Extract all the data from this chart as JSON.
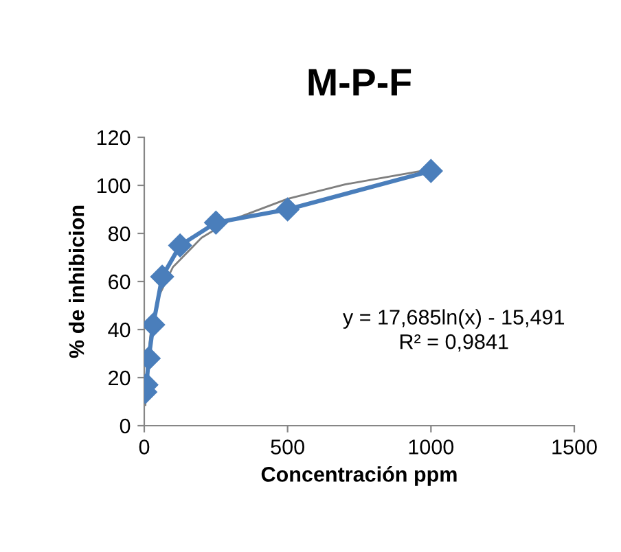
{
  "chart_data": {
    "type": "line",
    "title": "M-P-F",
    "xlabel": "Concentración ppm",
    "ylabel": "% de inhibicion",
    "xlim": [
      0,
      1500
    ],
    "xticks": [
      0,
      500,
      1000,
      1500
    ],
    "ylim": [
      0,
      120
    ],
    "yticks": [
      0,
      20,
      40,
      60,
      80,
      100,
      120
    ],
    "grid": false,
    "legend": false,
    "series": [
      {
        "color": "#4a7ebb",
        "marker": "diamond",
        "x": [
          3.9,
          7.8,
          15.6,
          31.25,
          62.5,
          125,
          250,
          500,
          1000
        ],
        "values": [
          14,
          17,
          28,
          42,
          62,
          75,
          84.5,
          90,
          106
        ]
      },
      {
        "type": "line",
        "color": "#7f7f7f",
        "marker": "none",
        "x": [
          3.9,
          10,
          25,
          50,
          100,
          200,
          300,
          500,
          700,
          1000
        ],
        "values": [
          8.6,
          25.2,
          41.4,
          53.7,
          66.0,
          78.2,
          85.4,
          94.4,
          100.4,
          106.7
        ]
      }
    ],
    "annotations": [
      "y = 17,685ln(x) - 15,491",
      "R² = 0,9841"
    ]
  }
}
